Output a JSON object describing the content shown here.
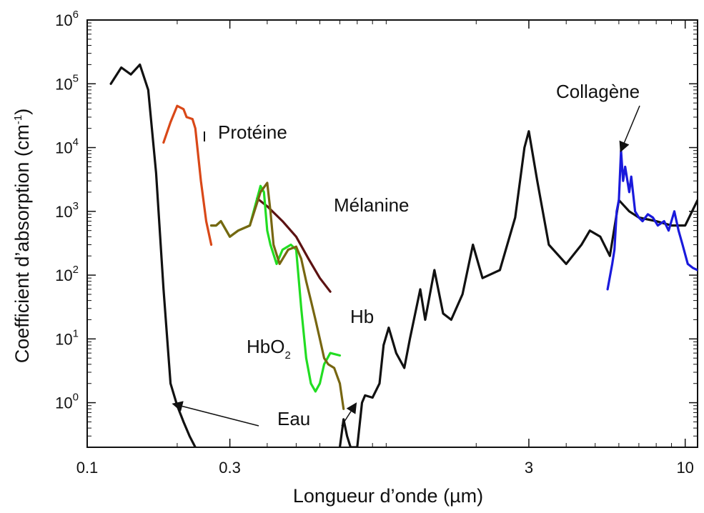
{
  "chart_data": {
    "type": "line",
    "xlabel": "Longueur d’onde (µm)",
    "ylabel_main": "Coefficient d’absorption (cm",
    "ylabel_sup": "-1",
    "ylabel_close": ")",
    "x_scale": "log",
    "y_scale": "log",
    "xlim": [
      0.1,
      11
    ],
    "ylim": [
      0.2,
      1000000
    ],
    "x_ticks": [
      {
        "value": 0.1,
        "label": "0.1"
      },
      {
        "value": 0.3,
        "label": "0.3"
      },
      {
        "value": 3,
        "label": "3"
      },
      {
        "value": 10,
        "label": "10"
      }
    ],
    "y_ticks": [
      {
        "value": 1,
        "base": "10",
        "exp": "0"
      },
      {
        "value": 10,
        "base": "10",
        "exp": "1"
      },
      {
        "value": 100,
        "base": "10",
        "exp": "2"
      },
      {
        "value": 1000,
        "base": "10",
        "exp": "3"
      },
      {
        "value": 10000,
        "base": "10",
        "exp": "4"
      },
      {
        "value": 100000,
        "base": "10",
        "exp": "5"
      },
      {
        "value": 1000000,
        "base": "10",
        "exp": "6"
      }
    ],
    "grid": false,
    "series": [
      {
        "name": "Eau",
        "color": "#111111",
        "points": [
          [
            0.12,
            100000
          ],
          [
            0.13,
            180000
          ],
          [
            0.14,
            140000
          ],
          [
            0.15,
            200000
          ],
          [
            0.16,
            80000
          ],
          [
            0.17,
            4000
          ],
          [
            0.18,
            60
          ],
          [
            0.19,
            2
          ],
          [
            0.2,
            0.9
          ],
          [
            0.21,
            0.5
          ],
          [
            0.22,
            0.3
          ],
          [
            0.23,
            0.2
          ]
        ]
      },
      {
        "name": "Eau",
        "color": "#111111",
        "points": [
          [
            0.7,
            0.2
          ],
          [
            0.72,
            0.55
          ],
          [
            0.74,
            0.3
          ],
          [
            0.76,
            0.2
          ],
          [
            0.8,
            0.2
          ],
          [
            0.83,
            1.0
          ],
          [
            0.85,
            1.3
          ],
          [
            0.9,
            1.2
          ],
          [
            0.95,
            2
          ],
          [
            0.98,
            8
          ],
          [
            1.02,
            15
          ],
          [
            1.08,
            6
          ],
          [
            1.15,
            3.5
          ],
          [
            1.2,
            10
          ],
          [
            1.3,
            60
          ],
          [
            1.35,
            20
          ],
          [
            1.45,
            120
          ],
          [
            1.55,
            25
          ],
          [
            1.65,
            20
          ],
          [
            1.8,
            50
          ],
          [
            1.95,
            300
          ],
          [
            2.1,
            90
          ],
          [
            2.4,
            120
          ],
          [
            2.7,
            800
          ],
          [
            2.9,
            10000
          ],
          [
            3.0,
            18000
          ],
          [
            3.2,
            3000
          ],
          [
            3.5,
            300
          ],
          [
            4.0,
            150
          ],
          [
            4.5,
            300
          ],
          [
            4.8,
            500
          ],
          [
            5.2,
            400
          ],
          [
            5.6,
            200
          ],
          [
            6.0,
            1500
          ],
          [
            6.5,
            1000
          ],
          [
            7.0,
            800
          ],
          [
            8.0,
            700
          ],
          [
            9.0,
            600
          ],
          [
            10.0,
            600
          ],
          [
            11.0,
            1500
          ]
        ]
      },
      {
        "name": "Protéine",
        "color": "#d94818",
        "points": [
          [
            0.18,
            12000
          ],
          [
            0.19,
            25000
          ],
          [
            0.2,
            45000
          ],
          [
            0.21,
            40000
          ],
          [
            0.215,
            30000
          ],
          [
            0.225,
            28000
          ],
          [
            0.23,
            20000
          ],
          [
            0.24,
            3000
          ],
          [
            0.25,
            700
          ],
          [
            0.26,
            300
          ]
        ]
      },
      {
        "name": "Mélanine",
        "color": "#5c1212",
        "points": [
          [
            0.37,
            1600
          ],
          [
            0.4,
            1200
          ],
          [
            0.45,
            700
          ],
          [
            0.5,
            400
          ],
          [
            0.55,
            180
          ],
          [
            0.6,
            90
          ],
          [
            0.65,
            55
          ]
        ]
      },
      {
        "name": "HbO2",
        "color": "#22dd22",
        "points": [
          [
            0.26,
            600
          ],
          [
            0.27,
            600
          ],
          [
            0.28,
            700
          ],
          [
            0.3,
            400
          ],
          [
            0.32,
            500
          ],
          [
            0.35,
            600
          ],
          [
            0.38,
            2500
          ],
          [
            0.39,
            2000
          ],
          [
            0.4,
            500
          ],
          [
            0.41,
            300
          ],
          [
            0.43,
            150
          ],
          [
            0.45,
            250
          ],
          [
            0.48,
            300
          ],
          [
            0.5,
            250
          ],
          [
            0.52,
            30
          ],
          [
            0.54,
            5
          ],
          [
            0.56,
            2
          ],
          [
            0.58,
            1.5
          ],
          [
            0.6,
            2
          ],
          [
            0.62,
            4
          ],
          [
            0.65,
            6
          ],
          [
            0.7,
            5.5
          ]
        ]
      },
      {
        "name": "Hb",
        "color": "#776611",
        "points": [
          [
            0.26,
            600
          ],
          [
            0.27,
            600
          ],
          [
            0.28,
            700
          ],
          [
            0.3,
            400
          ],
          [
            0.32,
            500
          ],
          [
            0.35,
            600
          ],
          [
            0.38,
            2000
          ],
          [
            0.4,
            2800
          ],
          [
            0.41,
            1000
          ],
          [
            0.42,
            300
          ],
          [
            0.44,
            150
          ],
          [
            0.47,
            250
          ],
          [
            0.5,
            280
          ],
          [
            0.52,
            180
          ],
          [
            0.54,
            80
          ],
          [
            0.56,
            40
          ],
          [
            0.58,
            20
          ],
          [
            0.6,
            10
          ],
          [
            0.62,
            5
          ],
          [
            0.64,
            4
          ],
          [
            0.67,
            3.5
          ],
          [
            0.7,
            2
          ],
          [
            0.72,
            0.8
          ]
        ]
      },
      {
        "name": "Collagène",
        "color": "#1a1adc",
        "points": [
          [
            5.5,
            60
          ],
          [
            5.7,
            150
          ],
          [
            5.8,
            250
          ],
          [
            5.9,
            1000
          ],
          [
            6.0,
            1500
          ],
          [
            6.1,
            9000
          ],
          [
            6.2,
            3000
          ],
          [
            6.3,
            5000
          ],
          [
            6.5,
            2000
          ],
          [
            6.6,
            3500
          ],
          [
            6.8,
            1000
          ],
          [
            7.0,
            800
          ],
          [
            7.2,
            700
          ],
          [
            7.5,
            900
          ],
          [
            7.8,
            800
          ],
          [
            8.1,
            600
          ],
          [
            8.5,
            700
          ],
          [
            8.8,
            500
          ],
          [
            9.2,
            1000
          ],
          [
            9.5,
            500
          ],
          [
            9.8,
            300
          ],
          [
            10.2,
            150
          ],
          [
            10.6,
            130
          ],
          [
            11.0,
            120
          ]
        ]
      }
    ],
    "annotations": {
      "proteine": "Protéine",
      "melanine": "Mélanine",
      "hb": "Hb",
      "hbo2_base": "HbO",
      "hbo2_sub": "2",
      "collagene": "Collagène",
      "eau": "Eau"
    }
  }
}
